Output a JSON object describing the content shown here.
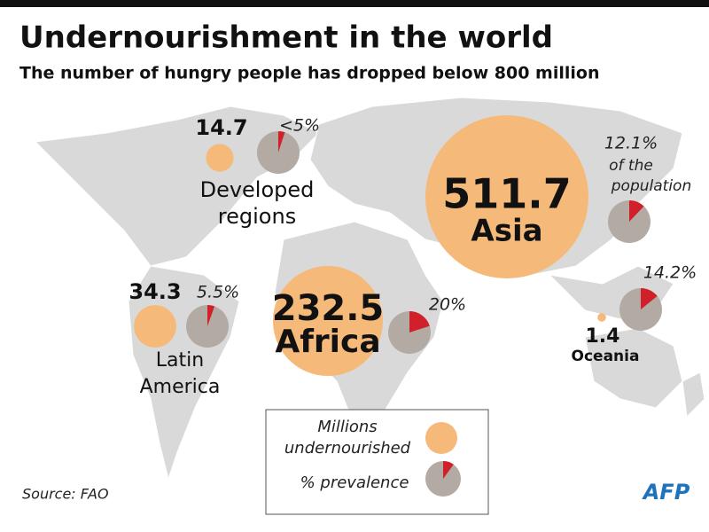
{
  "title": "Undernourishment in the world",
  "subtitle": "The number of hungry people has dropped below 800 million",
  "regions": [
    {
      "name_lines": [
        "Developed",
        "regions"
      ],
      "millions": 14.7,
      "prevalence": 5,
      "prevalence_label": "<5%"
    },
    {
      "name_lines": [
        "Asia"
      ],
      "millions": 511.7,
      "prevalence": 12.1,
      "prevalence_label": "12.1%",
      "note_lines": [
        "of the",
        "population"
      ]
    },
    {
      "name_lines": [
        "Africa"
      ],
      "millions": 232.5,
      "prevalence": 20,
      "prevalence_label": "20%"
    },
    {
      "name_lines": [
        "Latin",
        "America"
      ],
      "millions": 34.3,
      "prevalence": 5.5,
      "prevalence_label": "5.5%"
    },
    {
      "name_lines": [
        "Oceania"
      ],
      "millions": 1.4,
      "prevalence": 14.2,
      "prevalence_label": "14.2%"
    }
  ],
  "legend": {
    "size_lines": [
      "Millions",
      "undernourished"
    ],
    "share": "% prevalence"
  },
  "source": "Source: FAO",
  "logo": "AFP"
}
